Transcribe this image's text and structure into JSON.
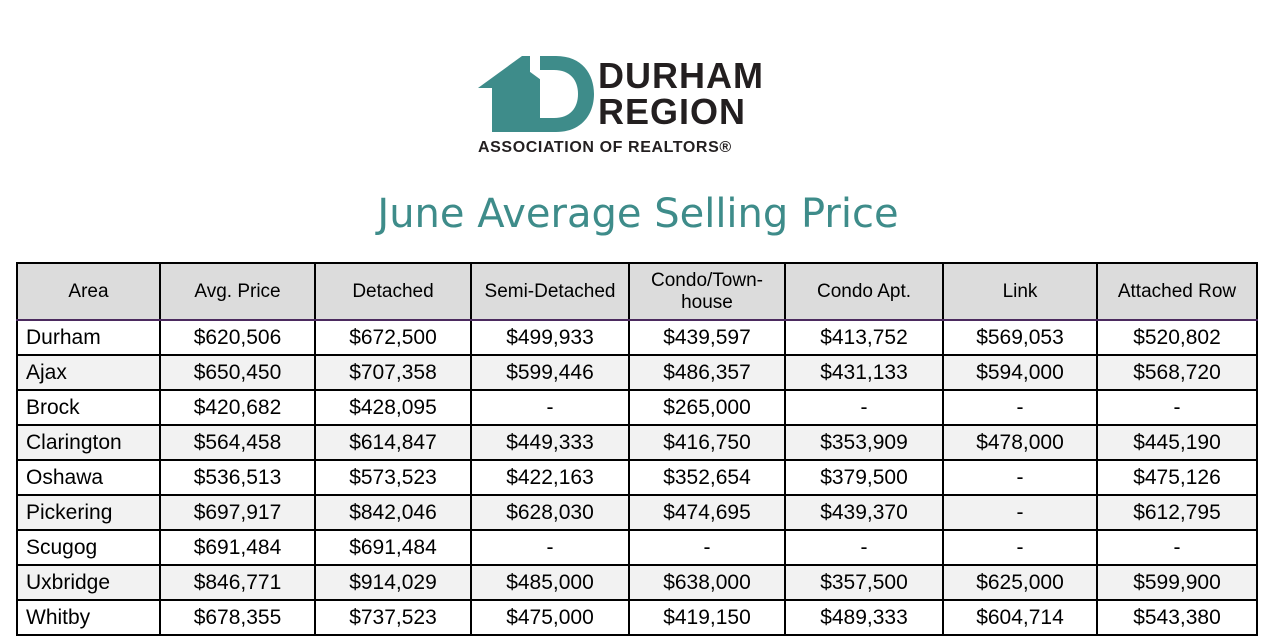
{
  "logo": {
    "line1": "DURHAM",
    "line2": "REGION",
    "sub": "ASSOCIATION OF REALTORS®",
    "color": "#3e8c8a"
  },
  "title": "June Average Selling Price",
  "table": {
    "headers": [
      "Area",
      "Avg. Price",
      "Detached",
      "Semi-Detached",
      "Condo/Town-house",
      "Condo Apt.",
      "Link",
      "Attached Row"
    ],
    "rows": [
      [
        "Durham",
        "$620,506",
        "$672,500",
        "$499,933",
        "$439,597",
        "$413,752",
        "$569,053",
        "$520,802"
      ],
      [
        "Ajax",
        "$650,450",
        "$707,358",
        "$599,446",
        "$486,357",
        "$431,133",
        "$594,000",
        "$568,720"
      ],
      [
        "Brock",
        "$420,682",
        "$428,095",
        "-",
        "$265,000",
        "-",
        "-",
        "-"
      ],
      [
        "Clarington",
        "$564,458",
        "$614,847",
        "$449,333",
        "$416,750",
        "$353,909",
        "$478,000",
        "$445,190"
      ],
      [
        "Oshawa",
        "$536,513",
        "$573,523",
        "$422,163",
        "$352,654",
        "$379,500",
        "-",
        "$475,126"
      ],
      [
        "Pickering",
        "$697,917",
        "$842,046",
        "$628,030",
        "$474,695",
        "$439,370",
        "-",
        "$612,795"
      ],
      [
        "Scugog",
        "$691,484",
        "$691,484",
        "-",
        "-",
        "-",
        "-",
        "-"
      ],
      [
        "Uxbridge",
        "$846,771",
        "$914,029",
        "$485,000",
        "$638,000",
        "$357,500",
        "$625,000",
        "$599,900"
      ],
      [
        "Whitby",
        "$678,355",
        "$737,523",
        "$475,000",
        "$419,150",
        "$489,333",
        "$604,714",
        "$543,380"
      ]
    ]
  }
}
